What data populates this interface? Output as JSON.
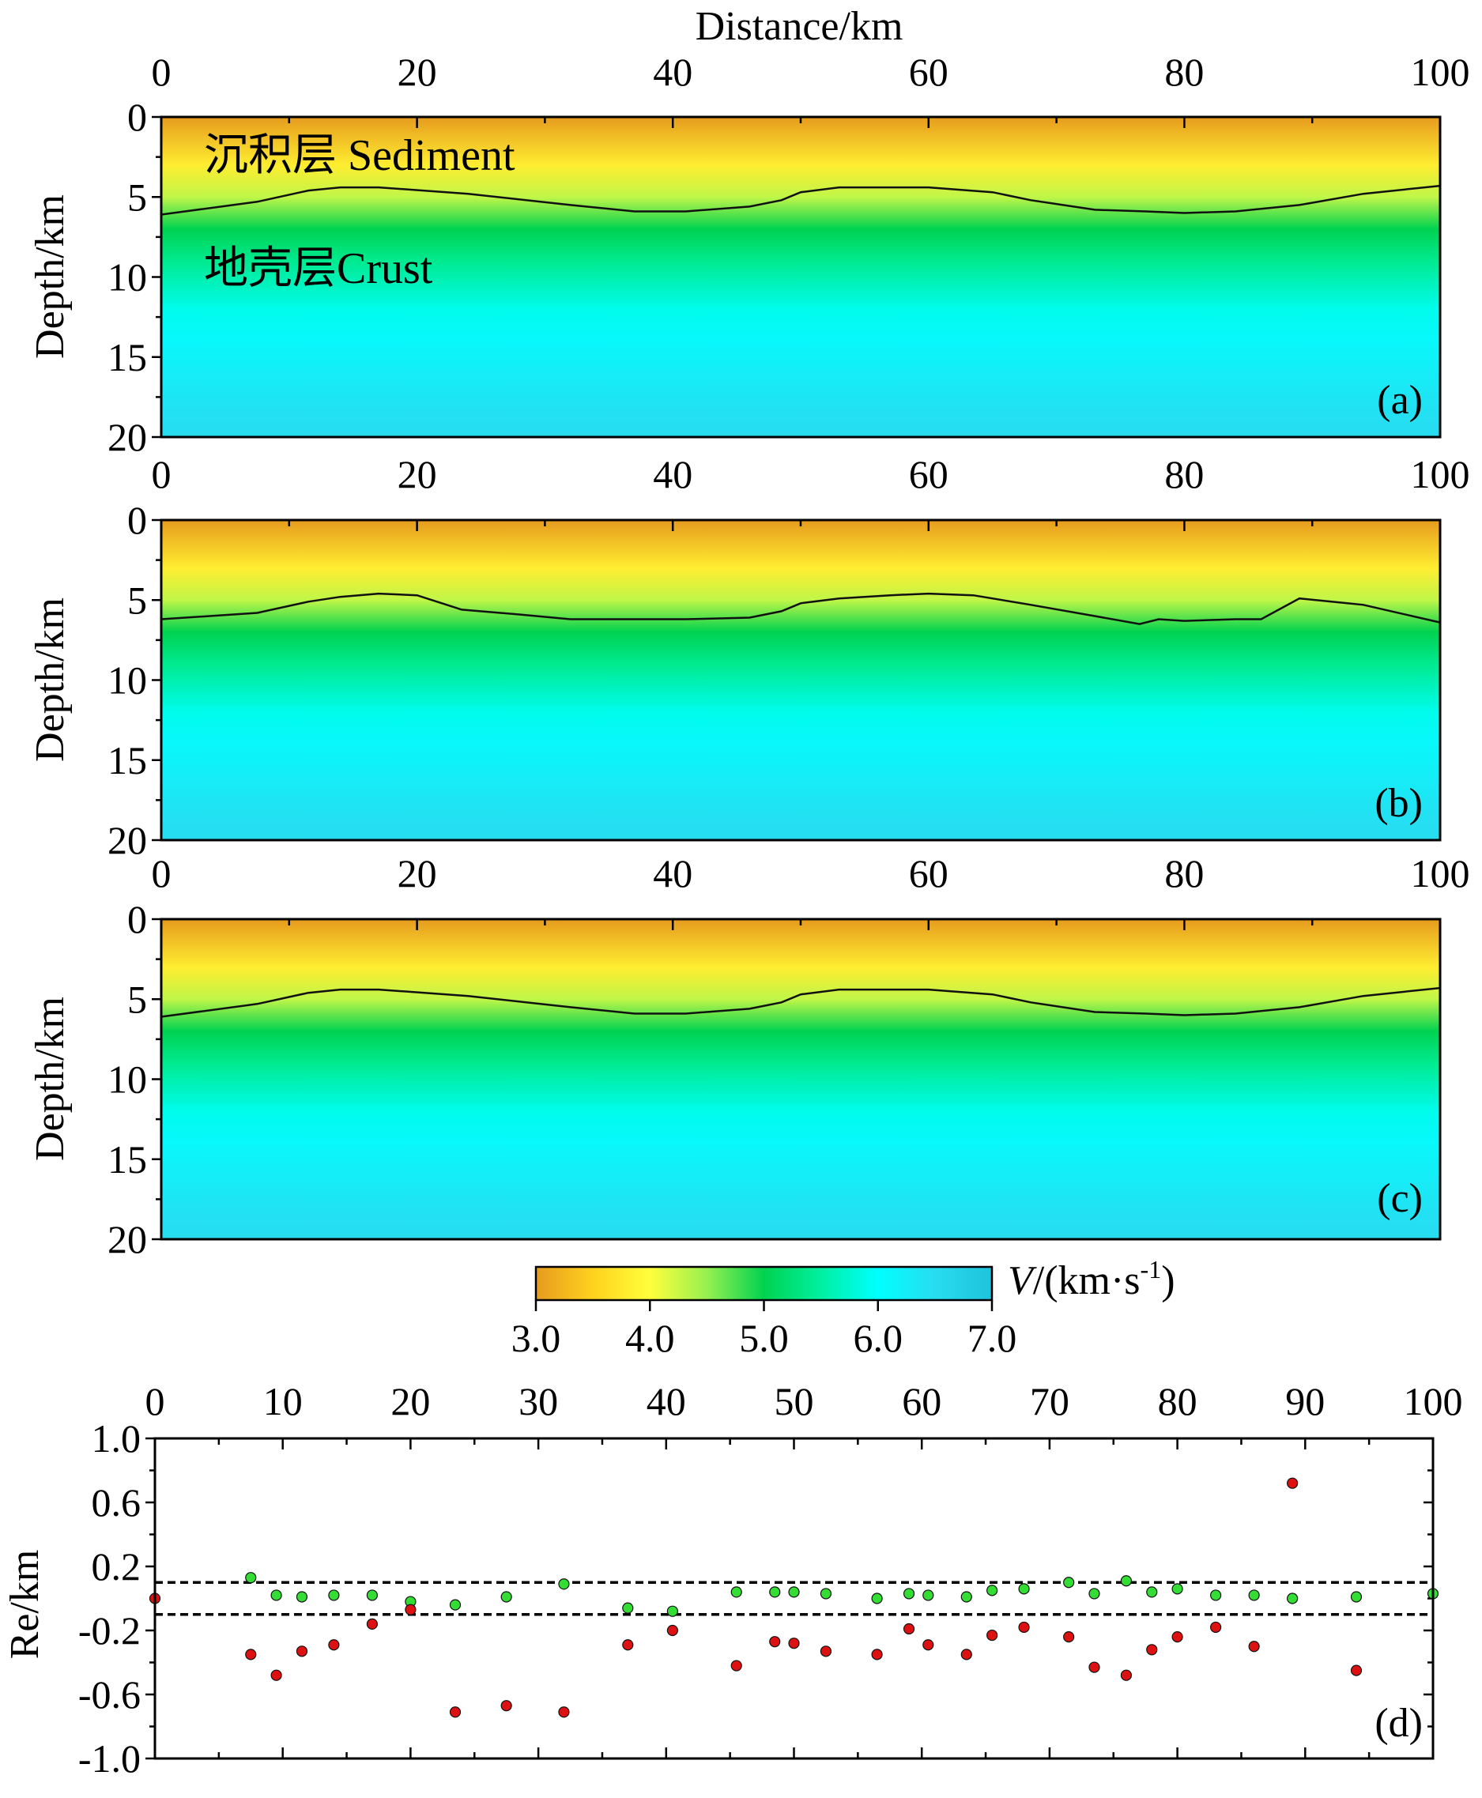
{
  "figure": {
    "x_title": "Distance/km",
    "y_title_depth": "Depth/km",
    "y_title_re": "Re/km"
  },
  "region_labels": {
    "sediment": "沉积层 Sediment",
    "crust": "地壳层Crust"
  },
  "colorbar": {
    "label_italic": "V",
    "label_rest": "/(km·s",
    "label_sup": "-1",
    "label_close": ")",
    "ticks": [
      "3.0",
      "4.0",
      "5.0",
      "6.0",
      "7.0"
    ],
    "stops": [
      {
        "v": 3.0,
        "color": "#e69b1e"
      },
      {
        "v": 3.5,
        "color": "#ffd21e"
      },
      {
        "v": 4.0,
        "color": "#ffff3c"
      },
      {
        "v": 4.5,
        "color": "#96f050"
      },
      {
        "v": 5.0,
        "color": "#00d250"
      },
      {
        "v": 5.5,
        "color": "#00f0a0"
      },
      {
        "v": 6.0,
        "color": "#00ffff"
      },
      {
        "v": 6.5,
        "color": "#28dcf0"
      },
      {
        "v": 7.0,
        "color": "#1ec3dc"
      }
    ]
  },
  "chart_data": [
    {
      "type": "heatmap",
      "panel": "(a)",
      "xlim": [
        0,
        100
      ],
      "ylim": [
        0,
        20
      ],
      "xticks": [
        "0",
        "20",
        "40",
        "60",
        "80",
        "100"
      ],
      "yticks": [
        "0",
        "5",
        "10",
        "15",
        "20"
      ],
      "boundary": {
        "x": [
          0,
          7.5,
          11.5,
          14,
          17,
          24,
          32,
          37,
          41,
          46,
          48.5,
          50,
          53,
          57,
          60,
          65,
          68,
          73,
          77,
          80,
          84,
          89,
          94,
          100
        ],
        "depth": [
          6.1,
          5.3,
          4.6,
          4.4,
          4.4,
          4.8,
          5.5,
          5.9,
          5.9,
          5.6,
          5.2,
          4.7,
          4.4,
          4.4,
          4.4,
          4.7,
          5.2,
          5.8,
          5.9,
          6.0,
          5.9,
          5.5,
          4.8,
          4.3
        ]
      },
      "velocity_profile": {
        "depth": [
          0,
          3,
          5,
          7,
          9,
          12,
          14,
          18,
          20
        ],
        "v": [
          3.0,
          3.8,
          4.3,
          5.0,
          5.4,
          5.9,
          6.1,
          6.4,
          6.5
        ]
      }
    },
    {
      "type": "heatmap",
      "panel": "(b)",
      "xlim": [
        0,
        100
      ],
      "ylim": [
        0,
        20
      ],
      "xticks": [
        "0",
        "20",
        "40",
        "60",
        "80",
        "100"
      ],
      "yticks": [
        "0",
        "5",
        "10",
        "15",
        "20"
      ],
      "boundary": {
        "x": [
          0,
          7.5,
          11.5,
          14,
          17,
          20,
          23.5,
          28,
          32,
          37,
          41,
          46,
          48.5,
          50,
          53,
          57,
          60,
          63.5,
          68,
          73,
          76.5,
          78,
          80,
          84,
          86,
          89,
          94,
          100
        ],
        "depth": [
          6.2,
          5.8,
          5.1,
          4.8,
          4.6,
          4.7,
          5.6,
          5.9,
          6.2,
          6.2,
          6.2,
          6.1,
          5.7,
          5.2,
          4.9,
          4.7,
          4.6,
          4.7,
          5.3,
          6.0,
          6.5,
          6.2,
          6.3,
          6.2,
          6.2,
          4.9,
          5.3,
          6.4
        ]
      },
      "velocity_profile": {
        "depth": [
          0,
          3,
          5,
          7,
          9,
          12,
          14,
          18,
          20
        ],
        "v": [
          3.0,
          3.8,
          4.3,
          5.0,
          5.4,
          5.9,
          6.1,
          6.4,
          6.5
        ]
      }
    },
    {
      "type": "heatmap",
      "panel": "(c)",
      "xlim": [
        0,
        100
      ],
      "ylim": [
        0,
        20
      ],
      "xticks": [
        "0",
        "20",
        "40",
        "60",
        "80",
        "100"
      ],
      "yticks": [
        "0",
        "5",
        "10",
        "15",
        "20"
      ],
      "boundary": {
        "x": [
          0,
          7.5,
          11.5,
          14,
          17,
          24,
          32,
          37,
          41,
          46,
          48.5,
          50,
          53,
          57,
          60,
          65,
          68,
          73,
          77,
          80,
          84,
          89,
          94,
          100
        ],
        "depth": [
          6.1,
          5.3,
          4.6,
          4.4,
          4.4,
          4.8,
          5.5,
          5.9,
          5.9,
          5.6,
          5.2,
          4.7,
          4.4,
          4.4,
          4.4,
          4.7,
          5.2,
          5.8,
          5.9,
          6.0,
          5.9,
          5.5,
          4.8,
          4.3
        ]
      },
      "velocity_profile": {
        "depth": [
          0,
          3,
          5,
          7,
          9,
          12,
          14,
          18,
          20
        ],
        "v": [
          3.0,
          3.8,
          4.3,
          5.0,
          5.4,
          5.9,
          6.1,
          6.4,
          6.5
        ]
      }
    },
    {
      "type": "scatter",
      "panel": "(d)",
      "xlim": [
        0,
        100
      ],
      "ylim": [
        -1.0,
        1.0
      ],
      "xticks": [
        "0",
        "10",
        "20",
        "30",
        "40",
        "50",
        "60",
        "70",
        "80",
        "90",
        "100"
      ],
      "yticks": [
        "1.0",
        "0.6",
        "0.2",
        "-0.2",
        "-0.6",
        "-1.0"
      ],
      "threshold_lines": [
        0.1,
        -0.1
      ],
      "series": [
        {
          "name": "green",
          "color": "#33dd33",
          "points": [
            [
              7.5,
              0.13
            ],
            [
              9.5,
              0.02
            ],
            [
              11.5,
              0.01
            ],
            [
              14,
              0.02
            ],
            [
              17,
              0.02
            ],
            [
              20,
              -0.02
            ],
            [
              23.5,
              -0.04
            ],
            [
              27.5,
              0.01
            ],
            [
              32,
              0.09
            ],
            [
              37,
              -0.06
            ],
            [
              40.5,
              -0.08
            ],
            [
              45.5,
              0.04
            ],
            [
              48.5,
              0.04
            ],
            [
              50,
              0.04
            ],
            [
              52.5,
              0.03
            ],
            [
              56.5,
              0.0
            ],
            [
              59,
              0.03
            ],
            [
              60.5,
              0.02
            ],
            [
              63.5,
              0.01
            ],
            [
              65.5,
              0.05
            ],
            [
              68,
              0.06
            ],
            [
              71.5,
              0.1
            ],
            [
              73.5,
              0.03
            ],
            [
              76,
              0.11
            ],
            [
              78,
              0.04
            ],
            [
              80,
              0.06
            ],
            [
              83,
              0.02
            ],
            [
              86,
              0.02
            ],
            [
              89,
              0.0
            ],
            [
              94,
              0.01
            ],
            [
              100,
              0.03
            ]
          ]
        },
        {
          "name": "red",
          "color": "#dd1111",
          "points": [
            [
              0,
              0.0
            ],
            [
              7.5,
              -0.35
            ],
            [
              9.5,
              -0.48
            ],
            [
              11.5,
              -0.33
            ],
            [
              14,
              -0.29
            ],
            [
              17,
              -0.16
            ],
            [
              20,
              -0.07
            ],
            [
              23.5,
              -0.71
            ],
            [
              27.5,
              -0.67
            ],
            [
              32,
              -0.71
            ],
            [
              37,
              -0.29
            ],
            [
              40.5,
              -0.2
            ],
            [
              45.5,
              -0.42
            ],
            [
              48.5,
              -0.27
            ],
            [
              50,
              -0.28
            ],
            [
              52.5,
              -0.33
            ],
            [
              56.5,
              -0.35
            ],
            [
              59,
              -0.19
            ],
            [
              60.5,
              -0.29
            ],
            [
              63.5,
              -0.35
            ],
            [
              65.5,
              -0.23
            ],
            [
              68,
              -0.18
            ],
            [
              71.5,
              -0.24
            ],
            [
              73.5,
              -0.43
            ],
            [
              76,
              -0.48
            ],
            [
              78,
              -0.32
            ],
            [
              80,
              -0.24
            ],
            [
              83,
              -0.18
            ],
            [
              86,
              -0.3
            ],
            [
              89,
              0.72
            ],
            [
              94,
              -0.45
            ]
          ]
        }
      ]
    }
  ]
}
